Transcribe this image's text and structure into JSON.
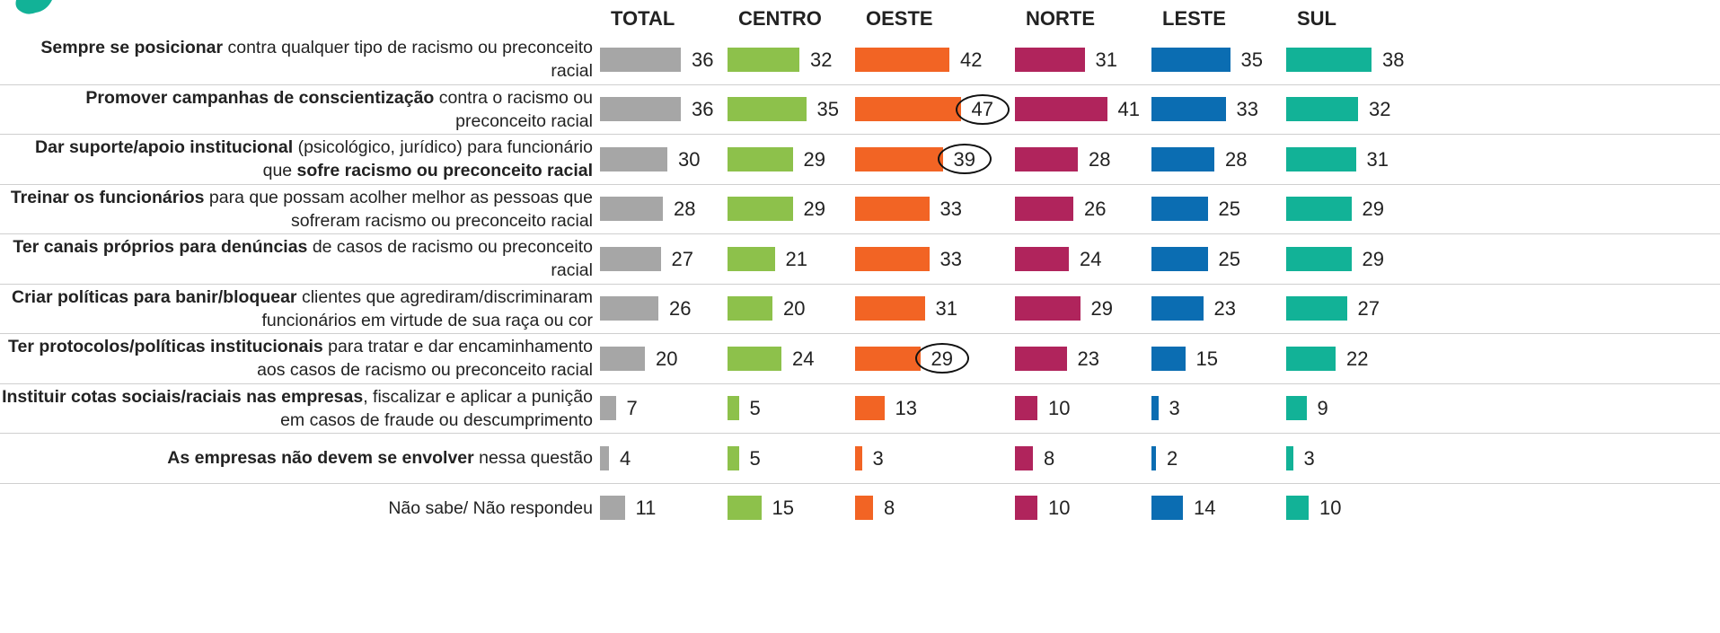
{
  "chart_data": {
    "type": "bar",
    "categories": [
      [
        {
          "text": "Sempre se posicionar",
          "bold": true
        },
        {
          "text": " contra qualquer tipo de racismo ou preconceito racial",
          "bold": false
        }
      ],
      [
        {
          "text": "Promover campanhas de conscientização",
          "bold": true
        },
        {
          "text": " contra o racismo ou preconceito racial",
          "bold": false
        }
      ],
      [
        {
          "text": "Dar suporte/apoio institucional",
          "bold": true
        },
        {
          "text": " (psicológico, jurídico) para funcionário que ",
          "bold": false
        },
        {
          "text": "sofre racismo ou preconceito racial",
          "bold": true
        }
      ],
      [
        {
          "text": "Treinar os funcionários",
          "bold": true
        },
        {
          "text": " para que possam acolher melhor as pessoas que sofreram racismo ou preconceito racial",
          "bold": false
        }
      ],
      [
        {
          "text": "Ter canais próprios para denúncias",
          "bold": true
        },
        {
          "text": " de casos de racismo ou preconceito racial",
          "bold": false
        }
      ],
      [
        {
          "text": "Criar políticas para banir/bloquear",
          "bold": true
        },
        {
          "text": " clientes que agrediram/discriminaram funcionários em virtude de sua raça ou cor",
          "bold": false
        }
      ],
      [
        {
          "text": "Ter protocolos/políticas institucionais",
          "bold": true
        },
        {
          "text": " para tratar e dar encaminhamento aos casos de racismo ou preconceito racial",
          "bold": false
        }
      ],
      [
        {
          "text": "Instituir cotas sociais/raciais nas empresas",
          "bold": true
        },
        {
          "text": ", fiscalizar e aplicar a punição em casos de fraude ou descumprimento",
          "bold": false
        }
      ],
      [
        {
          "text": "As empresas não devem se envolver",
          "bold": true
        },
        {
          "text": " nessa questão",
          "bold": false
        }
      ],
      [
        {
          "text": "Não sabe/ Não respondeu",
          "bold": false
        }
      ]
    ],
    "series": [
      {
        "name": "TOTAL",
        "color": "#a6a6a6",
        "values": [
          36,
          36,
          30,
          28,
          27,
          26,
          20,
          7,
          4,
          11
        ]
      },
      {
        "name": "CENTRO",
        "color": "#8dc14b",
        "values": [
          32,
          35,
          29,
          29,
          21,
          20,
          24,
          5,
          5,
          15
        ]
      },
      {
        "name": "OESTE",
        "color": "#f26424",
        "values": [
          42,
          47,
          39,
          33,
          33,
          31,
          29,
          13,
          3,
          8
        ],
        "circled": [
          1,
          2,
          6
        ]
      },
      {
        "name": "NORTE",
        "color": "#b0245c",
        "values": [
          31,
          41,
          28,
          26,
          24,
          29,
          23,
          10,
          8,
          10
        ]
      },
      {
        "name": "LESTE",
        "color": "#0b6db2",
        "values": [
          35,
          33,
          28,
          25,
          25,
          23,
          15,
          3,
          2,
          14
        ]
      },
      {
        "name": "SUL",
        "color": "#12b297",
        "values": [
          38,
          32,
          31,
          29,
          29,
          27,
          22,
          9,
          3,
          10
        ]
      }
    ]
  }
}
